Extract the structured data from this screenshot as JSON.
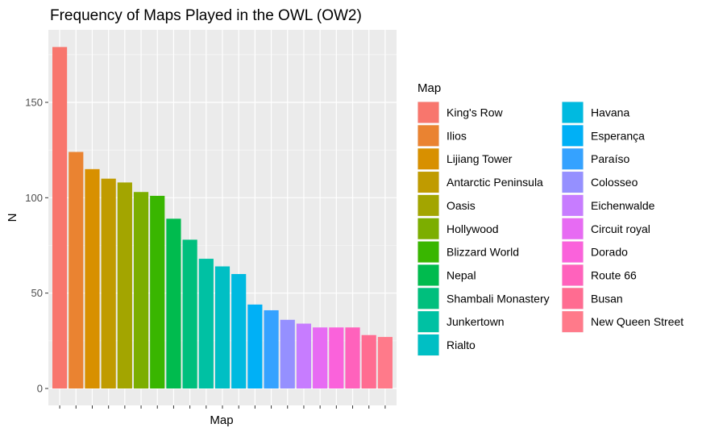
{
  "chart_data": {
    "type": "bar",
    "title": "Frequency of Maps Played in the OWL (OW2)",
    "xlabel": "Map",
    "ylabel": "N",
    "legend_title": "Map",
    "legend_placement": "right",
    "ylim": [
      0,
      186
    ],
    "yticks": [
      0,
      50,
      100,
      150
    ],
    "grid": true,
    "categories": [
      "King's Row",
      "Ilios",
      "Lijiang Tower",
      "Antarctic Peninsula",
      "Oasis",
      "Hollywood",
      "Blizzard World",
      "Nepal",
      "Shambali Monastery",
      "Junkertown",
      "Rialto",
      "Havana",
      "Esperança",
      "Paraíso",
      "Colosseo",
      "Eichenwalde",
      "Circuit royal",
      "Dorado",
      "Route 66",
      "Busan",
      "New Queen Street"
    ],
    "values": [
      179,
      124,
      115,
      110,
      108,
      103,
      101,
      89,
      78,
      68,
      64,
      60,
      44,
      41,
      36,
      34,
      32,
      32,
      32,
      28,
      27
    ],
    "colors": [
      "#F8766D",
      "#EA8331",
      "#D89000",
      "#C09B00",
      "#A3A500",
      "#7CAE00",
      "#39B600",
      "#00BB4E",
      "#00BF7D",
      "#00C1A3",
      "#00BFC4",
      "#00BAE0",
      "#00B0F6",
      "#35A2FF",
      "#9590FF",
      "#C77CFF",
      "#E76BF3",
      "#FA62DB",
      "#FF62BC",
      "#FF6C91",
      "#FF7A8A"
    ]
  }
}
